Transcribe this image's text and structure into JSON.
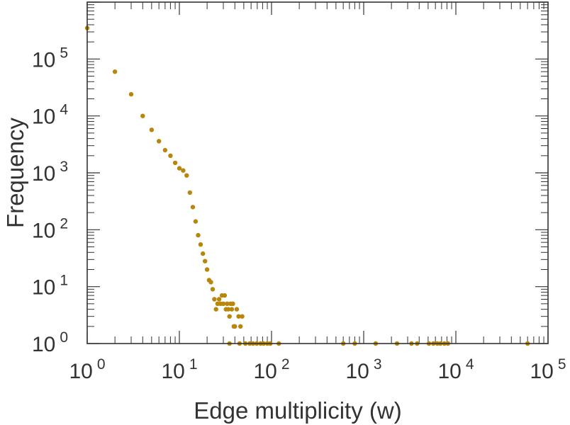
{
  "chart_data": {
    "type": "scatter",
    "xlabel": "Edge multiplicity (w)",
    "ylabel": "Frequency",
    "xscale": "log",
    "yscale": "log",
    "xlim": [
      1,
      100000
    ],
    "ylim": [
      1,
      1000000
    ],
    "x_ticks": [
      {
        "base": "10",
        "exp": "0"
      },
      {
        "base": "10",
        "exp": "1"
      },
      {
        "base": "10",
        "exp": "2"
      },
      {
        "base": "10",
        "exp": "3"
      },
      {
        "base": "10",
        "exp": "4"
      },
      {
        "base": "10",
        "exp": "5"
      }
    ],
    "y_ticks": [
      {
        "base": "10",
        "exp": "0"
      },
      {
        "base": "10",
        "exp": "1"
      },
      {
        "base": "10",
        "exp": "2"
      },
      {
        "base": "10",
        "exp": "3"
      },
      {
        "base": "10",
        "exp": "4"
      },
      {
        "base": "10",
        "exp": "5"
      }
    ],
    "grid": false,
    "marker_color": "#b8860b",
    "axis_color": "#333333",
    "series": [
      {
        "points": [
          [
            1,
            350000
          ],
          [
            2,
            60000
          ],
          [
            3,
            24000
          ],
          [
            4,
            10000
          ],
          [
            5,
            5700
          ],
          [
            6,
            3600
          ],
          [
            7,
            2500
          ],
          [
            8,
            2000
          ],
          [
            9,
            1500
          ],
          [
            10,
            1200
          ],
          [
            11,
            1100
          ],
          [
            12,
            900
          ],
          [
            13,
            450
          ],
          [
            14,
            250
          ],
          [
            15,
            140
          ],
          [
            16,
            80
          ],
          [
            17,
            55
          ],
          [
            18,
            38
          ],
          [
            19,
            28
          ],
          [
            20,
            20
          ],
          [
            21,
            13
          ],
          [
            22,
            12
          ],
          [
            23,
            9
          ],
          [
            24,
            6
          ],
          [
            25,
            4
          ],
          [
            26,
            5
          ],
          [
            27,
            6
          ],
          [
            28,
            5
          ],
          [
            29,
            7
          ],
          [
            30,
            5
          ],
          [
            31,
            7
          ],
          [
            32,
            4
          ],
          [
            33,
            5
          ],
          [
            34,
            4
          ],
          [
            35,
            3
          ],
          [
            36,
            5
          ],
          [
            37,
            4
          ],
          [
            38,
            5
          ],
          [
            39,
            2
          ],
          [
            40,
            2
          ],
          [
            42,
            4
          ],
          [
            44,
            3
          ],
          [
            46,
            2
          ],
          [
            48,
            3
          ],
          [
            35,
            1
          ],
          [
            45,
            1
          ],
          [
            52,
            1
          ],
          [
            58,
            1
          ],
          [
            63,
            1
          ],
          [
            69,
            1
          ],
          [
            76,
            1
          ],
          [
            82,
            1
          ],
          [
            90,
            1
          ],
          [
            97,
            1
          ],
          [
            120,
            1
          ],
          [
            600,
            1
          ],
          [
            800,
            1
          ],
          [
            1350,
            1
          ],
          [
            2300,
            1
          ],
          [
            3300,
            1
          ],
          [
            3800,
            1
          ],
          [
            5100,
            1
          ],
          [
            5700,
            1
          ],
          [
            6300,
            1
          ],
          [
            6800,
            1
          ],
          [
            7500,
            1
          ],
          [
            8200,
            1
          ],
          [
            60000,
            1
          ]
        ]
      }
    ]
  }
}
